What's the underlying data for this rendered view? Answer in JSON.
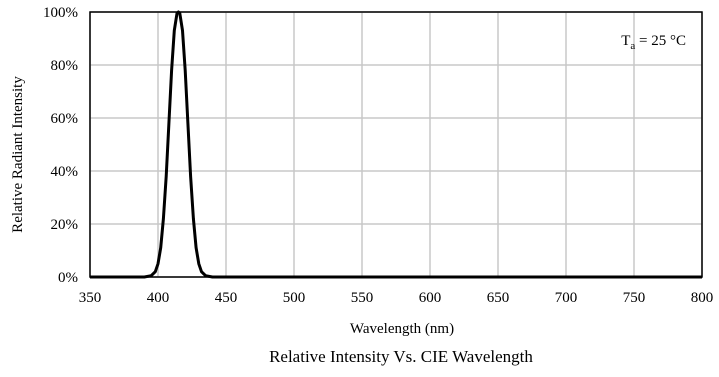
{
  "chart_data": {
    "type": "line",
    "title": "",
    "caption": "Relative Intensity Vs. CIE Wavelength",
    "xlabel": "Wavelength (nm)",
    "ylabel": "Relative Radiant Intensity",
    "xlim": [
      350,
      800
    ],
    "ylim": [
      0,
      100
    ],
    "x_ticks": [
      350,
      400,
      450,
      500,
      550,
      600,
      650,
      700,
      750,
      800
    ],
    "x_tick_labels": [
      "350",
      "400",
      "450",
      "500",
      "550",
      "600",
      "650",
      "700",
      "750",
      "800"
    ],
    "y_ticks": [
      0,
      20,
      40,
      60,
      80,
      100
    ],
    "y_tick_labels": [
      "0%",
      "20%",
      "40%",
      "60%",
      "80%",
      "100%"
    ],
    "grid": true,
    "annotation": {
      "main": "T",
      "sub": "a",
      "rest": " = 25 °C",
      "placement": "top-right"
    },
    "series": [
      {
        "x": [
          350,
          390,
          395,
          398,
          400,
          402,
          404,
          406,
          408,
          410,
          412,
          414,
          415,
          416,
          418,
          420,
          422,
          424,
          426,
          428,
          430,
          432,
          435,
          440,
          450,
          500,
          600,
          700,
          800
        ],
        "y": [
          0,
          0,
          0.5,
          2,
          5,
          11,
          22,
          38,
          58,
          78,
          93,
          99.5,
          100,
          99.5,
          93,
          78,
          58,
          38,
          22,
          11,
          5,
          2,
          0.5,
          0,
          0,
          0,
          0,
          0,
          0
        ],
        "color": "#000000"
      }
    ]
  }
}
